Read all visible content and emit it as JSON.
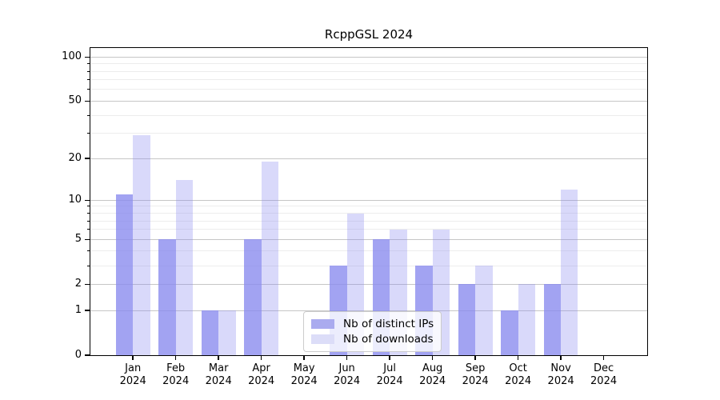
{
  "title": "RcppGSL 2024",
  "colors": {
    "bar_ips": "rgba(136,137,238,0.78)",
    "bar_downloads": "rgba(136,137,238,0.32)",
    "legend_ips_swatch": "#aaabef",
    "legend_downloads_swatch": "#dcddf8",
    "grid_major": "#c6c6c6",
    "grid_minor": "#ececec",
    "axis": "#000000",
    "background": "#ffffff"
  },
  "legend": {
    "items": [
      {
        "label": "Nb of distinct IPs"
      },
      {
        "label": "Nb of downloads"
      }
    ]
  },
  "chart_data": {
    "type": "bar",
    "title": "RcppGSL 2024",
    "categories": [
      "Jan",
      "Feb",
      "Mar",
      "Apr",
      "May",
      "Jun",
      "Jul",
      "Aug",
      "Sep",
      "Oct",
      "Nov",
      "Dec"
    ],
    "year_label": "2024",
    "series": [
      {
        "name": "Nb of distinct IPs",
        "values": [
          11,
          5,
          1,
          5,
          0,
          3,
          5,
          3,
          2,
          1,
          2,
          0
        ]
      },
      {
        "name": "Nb of downloads",
        "values": [
          29,
          14,
          1,
          19,
          0,
          8,
          6,
          6,
          3,
          2,
          12,
          0
        ]
      }
    ],
    "xlabel": "",
    "ylabel": "",
    "y_scale": "log1p",
    "y_tick_values": [
      0,
      1,
      2,
      5,
      10,
      20,
      50,
      100
    ],
    "y_minor_grid_values": [
      3,
      4,
      6,
      7,
      8,
      9,
      30,
      40,
      60,
      70,
      80,
      90
    ],
    "ylim": [
      0,
      115
    ],
    "grid": true,
    "legend_position": "lower center"
  }
}
